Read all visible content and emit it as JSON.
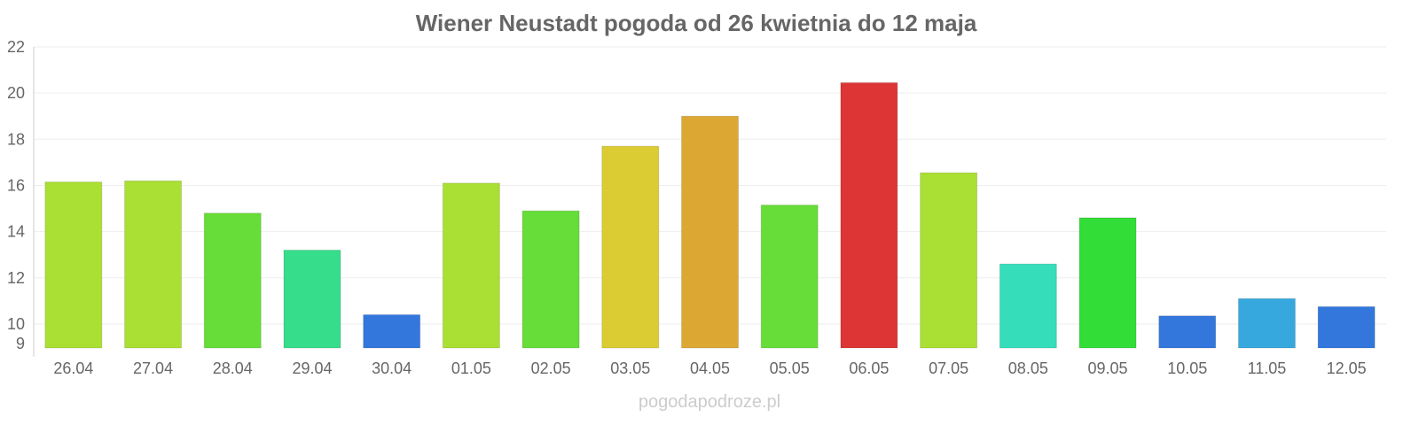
{
  "chart_data": {
    "type": "bar",
    "title": "Wiener Neustadt pogoda od 26 kwietnia do 12 maja",
    "categories": [
      "26.04",
      "27.04",
      "28.04",
      "29.04",
      "30.04",
      "01.05",
      "02.05",
      "03.05",
      "04.05",
      "05.05",
      "06.05",
      "07.05",
      "08.05",
      "09.05",
      "10.05",
      "11.05",
      "12.05"
    ],
    "values": [
      16.15,
      16.2,
      14.8,
      13.2,
      10.4,
      16.1,
      14.9,
      17.7,
      19.0,
      15.15,
      20.45,
      16.55,
      12.6,
      14.6,
      10.35,
      11.1,
      10.75
    ],
    "colors": [
      "#aadf33",
      "#aadf33",
      "#66dd38",
      "#36dd8a",
      "#3377dd",
      "#aadf33",
      "#66dd38",
      "#dccc33",
      "#dca833",
      "#66dd38",
      "#dd3535",
      "#aadf33",
      "#36ddbb",
      "#33dd38",
      "#3377dd",
      "#36a8dd",
      "#3377dd"
    ],
    "ylim": [
      9,
      22
    ],
    "yticks": [
      9,
      10,
      12,
      14,
      16,
      18,
      20,
      22
    ],
    "xlabel": "",
    "ylabel": "",
    "grid": true
  },
  "watermark": "pogodapodroze.pl"
}
